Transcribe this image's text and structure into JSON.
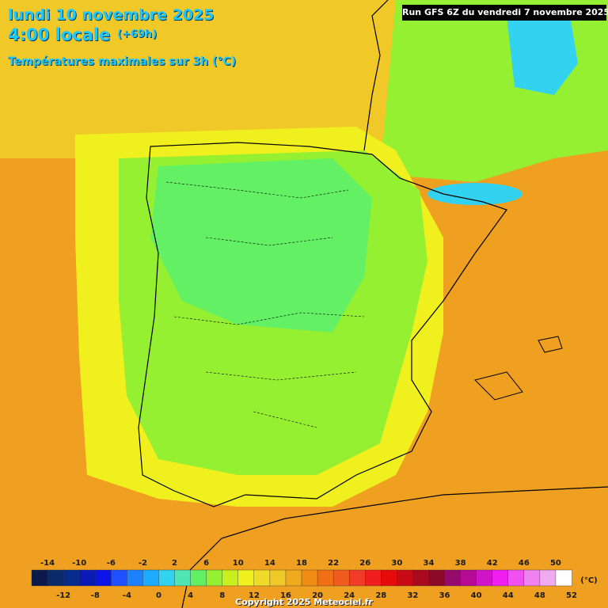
{
  "header": {
    "date": "lundi 10 novembre 2025",
    "time": "4:00 locale",
    "offset": "(+69h)",
    "parameter": "Températures maximales sur 3h (°C)"
  },
  "run_label": "Run GFS 6Z du vendredi 7 novembre 2025",
  "legend": {
    "unit": "(°C)",
    "upper_labels": [
      "-14",
      "-10",
      "-6",
      "-2",
      "2",
      "6",
      "10",
      "14",
      "18",
      "22",
      "26",
      "30",
      "34",
      "38",
      "42",
      "46",
      "50"
    ],
    "lower_labels": [
      "-12",
      "-8",
      "-4",
      "0",
      "4",
      "8",
      "12",
      "16",
      "20",
      "24",
      "28",
      "32",
      "36",
      "40",
      "44",
      "48",
      "52"
    ],
    "colors": [
      "#0a1a4a",
      "#0a2a6a",
      "#082c8c",
      "#0a1ab4",
      "#0c14e6",
      "#1e50ff",
      "#1e82ff",
      "#1eaaff",
      "#32d2f0",
      "#50e6b4",
      "#64f064",
      "#96f032",
      "#c8f01e",
      "#f0f01e",
      "#f0dc28",
      "#f0c828",
      "#f0aa1e",
      "#f08c14",
      "#f06e14",
      "#f05a1e",
      "#f03c28",
      "#f01e1e",
      "#e60a0a",
      "#c80a14",
      "#aa0a1e",
      "#8c0a28",
      "#960a6e",
      "#b40a96",
      "#d214c8",
      "#f01ef0",
      "#f050f0",
      "#f082f0",
      "#f0aaf0",
      "#ffffff"
    ]
  },
  "copyright": "Copyright 2025 Meteociel.fr",
  "map": {
    "region": "Iberian Peninsula",
    "land_color": "#ffffff",
    "border_color": "#000000",
    "value_samples": [
      {
        "lon_label": "west-atlantic",
        "value": 15
      },
      {
        "lon_label": "central-meseta",
        "value": 7
      },
      {
        "lon_label": "pyrenees",
        "value": 0
      },
      {
        "lon_label": "mediterranean",
        "value": 19
      }
    ]
  }
}
